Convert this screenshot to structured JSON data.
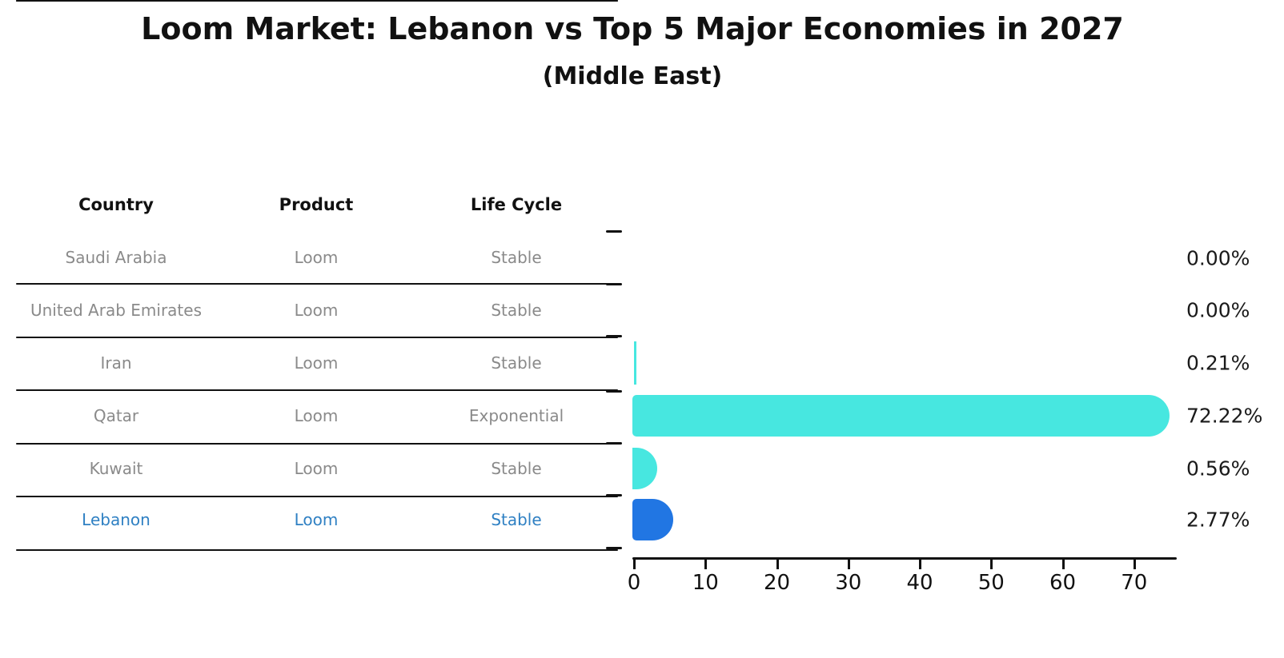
{
  "title": "Loom Market: Lebanon vs Top 5 Major Economies in 2027",
  "subtitle": "(Middle East)",
  "table": {
    "headers": [
      "Country",
      "Product",
      "Life Cycle"
    ],
    "rows": [
      {
        "country": "Saudi Arabia",
        "product": "Loom",
        "life_cycle": "Stable"
      },
      {
        "country": "United Arab Emirates",
        "product": "Loom",
        "life_cycle": "Stable"
      },
      {
        "country": "Iran",
        "product": "Loom",
        "life_cycle": "Stable"
      },
      {
        "country": "Qatar",
        "product": "Loom",
        "life_cycle": "Exponential"
      },
      {
        "country": "Kuwait",
        "product": "Loom",
        "life_cycle": "Stable"
      },
      {
        "country": "Lebanon",
        "product": "Loom",
        "life_cycle": "Stable",
        "highlighted": true
      }
    ]
  },
  "chart_data": {
    "type": "bar",
    "orientation": "horizontal",
    "title": "Loom Market: Lebanon vs Top 5 Major Economies in 2027",
    "subtitle": "(Middle East)",
    "categories": [
      "Saudi Arabia",
      "United Arab Emirates",
      "Iran",
      "Qatar",
      "Kuwait",
      "Lebanon"
    ],
    "values": [
      0.0,
      0.0,
      0.21,
      72.22,
      0.56,
      2.77
    ],
    "value_labels": [
      "0.00%",
      "0.00%",
      "0.21%",
      "72.22%",
      "0.56%",
      "2.77%"
    ],
    "units": "percent market share",
    "x_ticks": [
      0,
      10,
      20,
      30,
      40,
      50,
      60,
      70
    ],
    "xlim": [
      0,
      76
    ],
    "grid": false,
    "legend": false,
    "bar_colors": [
      "#47e7e0",
      "#47e7e0",
      "#47e7e0",
      "#47e7e0",
      "#47e7e0",
      "#2176e3"
    ],
    "highlighted_category": "Lebanon"
  },
  "colors": {
    "bar_default": "#47e7e0",
    "bar_highlight": "#2176e3",
    "highlight_text": "#2f80c3",
    "muted_text": "#8a8a8a",
    "axis": "#111111",
    "label_text": "#1a1a1a"
  }
}
